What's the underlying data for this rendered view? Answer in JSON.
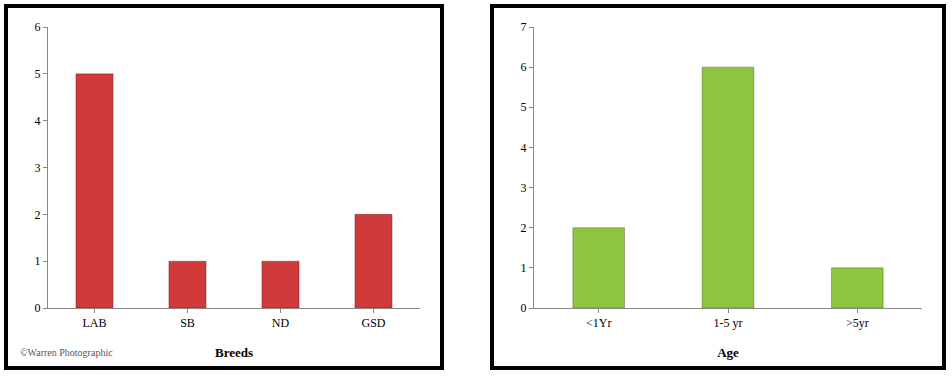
{
  "chart_data": [
    {
      "type": "bar",
      "x_label": "Breeds",
      "categories": [
        "LAB",
        "SB",
        "ND",
        "GSD"
      ],
      "values": [
        5,
        1,
        1,
        2
      ],
      "color": "#d03a3a",
      "ylim": [
        0,
        6
      ],
      "yticks": [
        0,
        1,
        2,
        3,
        4,
        5,
        6
      ],
      "grid": false,
      "annotations": [
        "©Warren Photographic"
      ]
    },
    {
      "type": "bar",
      "x_label": "Age",
      "categories": [
        "<1Yr",
        "1-5 yr",
        ">5yr"
      ],
      "values": [
        2,
        6,
        1
      ],
      "color": "#8cc63f",
      "ylim": [
        0,
        7
      ],
      "yticks": [
        0,
        1,
        2,
        3,
        4,
        5,
        6,
        7
      ],
      "grid": false
    }
  ]
}
